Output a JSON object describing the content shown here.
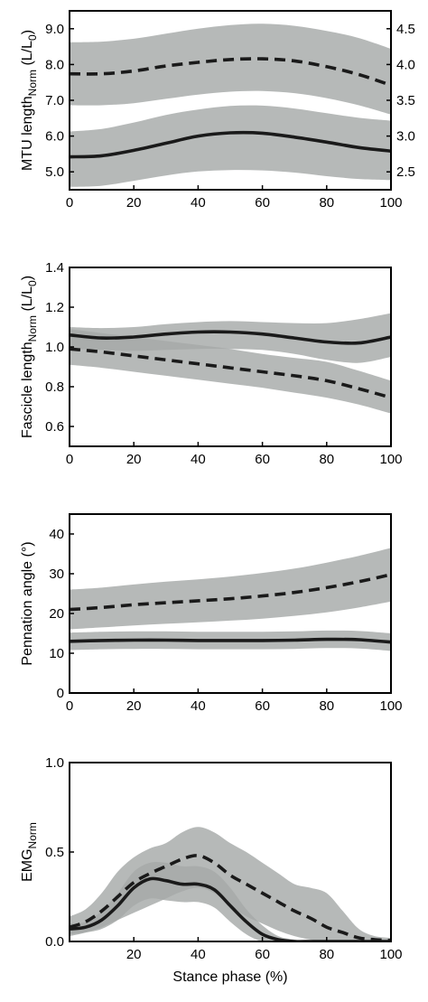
{
  "chart_data": [
    {
      "type": "line",
      "ylabel": {
        "main": "MTU length",
        "sub": "Norm",
        "unit_pre": " (L/L",
        "unit_sub": "0",
        "unit_post": ")"
      },
      "xlim": [
        0,
        100
      ],
      "xticks": [
        "0",
        "20",
        "40",
        "60",
        "80",
        "100"
      ],
      "ylim": [
        4.5,
        9.5
      ],
      "yticks": [
        "5.0",
        "6.0",
        "7.0",
        "8.0",
        "9.0"
      ],
      "ylim_right": [
        2.25,
        4.75
      ],
      "yticks_right": [
        "2.5",
        "3.0",
        "3.5",
        "4.0",
        "4.5"
      ],
      "x": [
        0,
        10,
        20,
        30,
        40,
        50,
        60,
        70,
        80,
        90,
        100
      ],
      "series": [
        {
          "style": "dashed",
          "axis": "right",
          "values": [
            3.87,
            3.87,
            3.91,
            3.98,
            4.03,
            4.07,
            4.08,
            4.05,
            3.97,
            3.86,
            3.71
          ],
          "band_lower": [
            3.43,
            3.43,
            3.46,
            3.52,
            3.58,
            3.62,
            3.63,
            3.6,
            3.53,
            3.43,
            3.3
          ],
          "band_upper": [
            4.31,
            4.32,
            4.36,
            4.43,
            4.5,
            4.55,
            4.57,
            4.54,
            4.47,
            4.37,
            4.22
          ]
        },
        {
          "style": "solid",
          "axis": "left",
          "values": [
            5.42,
            5.45,
            5.6,
            5.8,
            6.0,
            6.09,
            6.08,
            5.97,
            5.83,
            5.68,
            5.58
          ],
          "band_lower": [
            4.58,
            4.61,
            4.75,
            4.9,
            5.01,
            5.05,
            5.04,
            4.98,
            4.88,
            4.8,
            4.77
          ],
          "band_upper": [
            6.13,
            6.2,
            6.38,
            6.59,
            6.74,
            6.84,
            6.85,
            6.77,
            6.64,
            6.51,
            6.43
          ]
        }
      ]
    },
    {
      "type": "line",
      "ylabel": {
        "main": "Fascicle length",
        "sub": "Norm",
        "unit_pre": " (L/L",
        "unit_sub": "0",
        "unit_post": ")"
      },
      "xlim": [
        0,
        100
      ],
      "xticks": [
        "0",
        "20",
        "40",
        "60",
        "80",
        "100"
      ],
      "ylim": [
        0.5,
        1.4
      ],
      "yticks": [
        "0.6",
        "0.8",
        "1.0",
        "1.2",
        "1.4"
      ],
      "x": [
        0,
        10,
        20,
        30,
        40,
        50,
        60,
        70,
        80,
        90,
        100
      ],
      "series": [
        {
          "style": "dashed",
          "values": [
            0.99,
            0.975,
            0.955,
            0.935,
            0.915,
            0.895,
            0.875,
            0.855,
            0.83,
            0.79,
            0.745
          ],
          "band_lower": [
            0.91,
            0.895,
            0.875,
            0.855,
            0.835,
            0.815,
            0.795,
            0.77,
            0.745,
            0.71,
            0.665
          ],
          "band_upper": [
            1.09,
            1.07,
            1.05,
            1.03,
            1.01,
            0.99,
            0.965,
            0.945,
            0.925,
            0.88,
            0.83
          ]
        },
        {
          "style": "solid",
          "values": [
            1.06,
            1.045,
            1.05,
            1.065,
            1.075,
            1.075,
            1.065,
            1.045,
            1.025,
            1.02,
            1.05
          ],
          "band_lower": [
            0.99,
            0.985,
            0.98,
            0.985,
            0.99,
            0.99,
            0.985,
            0.965,
            0.935,
            0.92,
            0.95
          ],
          "band_upper": [
            1.1,
            1.095,
            1.1,
            1.115,
            1.125,
            1.13,
            1.125,
            1.12,
            1.12,
            1.14,
            1.17
          ]
        }
      ]
    },
    {
      "type": "line",
      "ylabel": {
        "main": "Pennation angle (°)",
        "sub": "",
        "unit_pre": "",
        "unit_sub": "",
        "unit_post": ""
      },
      "xlim": [
        0,
        100
      ],
      "xticks": [
        "0",
        "20",
        "40",
        "60",
        "80",
        "100"
      ],
      "ylim": [
        0,
        45
      ],
      "yticks": [
        "0",
        "10",
        "20",
        "30",
        "40"
      ],
      "x": [
        0,
        10,
        20,
        30,
        40,
        50,
        60,
        70,
        80,
        90,
        100
      ],
      "series": [
        {
          "style": "dashed",
          "values": [
            21.0,
            21.5,
            22.2,
            22.7,
            23.2,
            23.7,
            24.4,
            25.3,
            26.5,
            28.0,
            29.8
          ],
          "band_lower": [
            16.0,
            16.5,
            17.0,
            17.4,
            17.8,
            18.2,
            18.7,
            19.4,
            20.3,
            21.5,
            23.0
          ],
          "band_upper": [
            26.0,
            26.5,
            27.3,
            28.0,
            28.6,
            29.3,
            30.2,
            31.3,
            32.8,
            34.5,
            36.5
          ]
        },
        {
          "style": "solid",
          "values": [
            13.0,
            13.2,
            13.3,
            13.3,
            13.2,
            13.2,
            13.2,
            13.3,
            13.5,
            13.4,
            12.8
          ],
          "band_lower": [
            10.8,
            11.0,
            11.1,
            11.1,
            11.0,
            11.0,
            11.0,
            11.1,
            11.3,
            11.2,
            10.6
          ],
          "band_upper": [
            15.2,
            15.4,
            15.5,
            15.5,
            15.4,
            15.4,
            15.4,
            15.5,
            15.7,
            15.6,
            15.0
          ]
        }
      ]
    },
    {
      "type": "line",
      "ylabel": {
        "main": "EMG",
        "sub": "Norm",
        "unit_pre": "",
        "unit_sub": "",
        "unit_post": ""
      },
      "xlabel": "Stance phase (%)",
      "xlim": [
        0,
        100
      ],
      "xticks": [
        "20",
        "40",
        "60",
        "80",
        "100"
      ],
      "ylim": [
        0,
        1.0
      ],
      "yticks": [
        "0.0",
        "0.5",
        "1.0"
      ],
      "x": [
        0,
        5,
        10,
        15,
        20,
        25,
        30,
        35,
        40,
        45,
        50,
        55,
        60,
        65,
        70,
        75,
        80,
        85,
        90,
        95,
        100
      ],
      "series": [
        {
          "style": "dashed",
          "values": [
            0.08,
            0.11,
            0.17,
            0.25,
            0.33,
            0.38,
            0.42,
            0.46,
            0.48,
            0.44,
            0.37,
            0.32,
            0.27,
            0.22,
            0.17,
            0.13,
            0.08,
            0.05,
            0.02,
            0.01,
            0.005
          ],
          "band_lower": [
            0.03,
            0.05,
            0.08,
            0.12,
            0.16,
            0.2,
            0.24,
            0.28,
            0.3,
            0.27,
            0.2,
            0.14,
            0.1,
            0.06,
            0.03,
            0.01,
            0.0,
            0.0,
            0.0,
            0.0,
            0.0
          ],
          "band_upper": [
            0.14,
            0.18,
            0.27,
            0.39,
            0.47,
            0.52,
            0.55,
            0.61,
            0.64,
            0.61,
            0.55,
            0.5,
            0.44,
            0.38,
            0.32,
            0.3,
            0.27,
            0.17,
            0.07,
            0.03,
            0.02
          ]
        },
        {
          "style": "solid",
          "values": [
            0.07,
            0.08,
            0.12,
            0.2,
            0.3,
            0.35,
            0.34,
            0.32,
            0.32,
            0.29,
            0.2,
            0.11,
            0.04,
            0.01,
            0.0,
            0.0,
            0.0,
            0.0,
            0.0,
            0.0,
            0.0
          ],
          "band_lower": [
            0.04,
            0.05,
            0.07,
            0.12,
            0.2,
            0.24,
            0.23,
            0.22,
            0.22,
            0.19,
            0.11,
            0.04,
            0.0,
            0.0,
            0.0,
            0.0,
            0.0,
            0.0,
            0.0,
            0.0,
            0.0
          ],
          "band_upper": [
            0.1,
            0.11,
            0.17,
            0.27,
            0.39,
            0.44,
            0.44,
            0.42,
            0.42,
            0.39,
            0.3,
            0.18,
            0.09,
            0.03,
            0.01,
            0.0,
            0.0,
            0.0,
            0.0,
            0.0,
            0.0
          ]
        }
      ]
    }
  ]
}
